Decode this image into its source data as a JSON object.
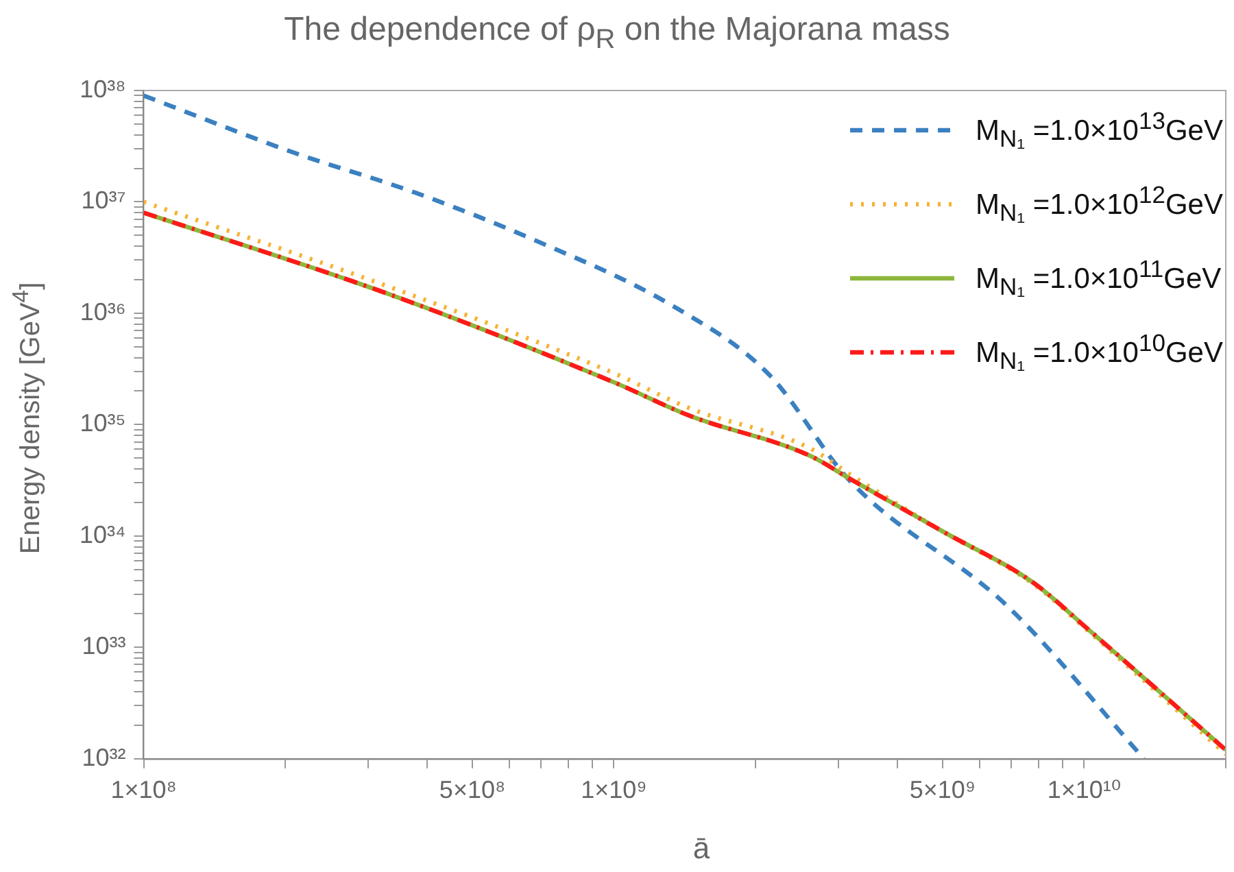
{
  "chart_data": {
    "type": "line",
    "title": "The dependence of ρ$_{R}$ on the Majorana mass",
    "xlabel": "ā",
    "ylabel": "Energy density  [GeV$^{4}$]",
    "log": "xy",
    "grid": false,
    "legend": "top right",
    "marker": "none",
    "xlim": [
      100000000.0,
      20000000000.0
    ],
    "ylim": [
      1e+32,
      1e+38
    ],
    "xticks": [
      {
        "value": 100000000.0,
        "label": "1×10⁸"
      },
      {
        "value": 200000000.0,
        "label": null
      },
      {
        "value": 300000000.0,
        "label": null
      },
      {
        "value": 400000000.0,
        "label": null
      },
      {
        "value": 500000000.0,
        "label": "5×10⁸"
      },
      {
        "value": 600000000.0,
        "label": null
      },
      {
        "value": 700000000.0,
        "label": null
      },
      {
        "value": 800000000.0,
        "label": null
      },
      {
        "value": 900000000.0,
        "label": null
      },
      {
        "value": 1000000000.0,
        "label": "1×10⁹"
      },
      {
        "value": 2000000000.0,
        "label": null
      },
      {
        "value": 3000000000.0,
        "label": null
      },
      {
        "value": 4000000000.0,
        "label": null
      },
      {
        "value": 5000000000.0,
        "label": "5×10⁹"
      },
      {
        "value": 6000000000.0,
        "label": null
      },
      {
        "value": 7000000000.0,
        "label": null
      },
      {
        "value": 8000000000.0,
        "label": null
      },
      {
        "value": 9000000000.0,
        "label": null
      },
      {
        "value": 10000000000.0,
        "label": "1×10¹⁰"
      },
      {
        "value": 20000000000.0,
        "label": null
      }
    ],
    "yticks": [
      {
        "value": 1e+32,
        "label": "10³²"
      },
      {
        "value": 2e+32,
        "label": null
      },
      {
        "value": 3e+32,
        "label": null
      },
      {
        "value": 4e+32,
        "label": null
      },
      {
        "value": 5e+32,
        "label": null
      },
      {
        "value": 6e+32,
        "label": null
      },
      {
        "value": 7e+32,
        "label": null
      },
      {
        "value": 8e+32,
        "label": null
      },
      {
        "value": 9e+32,
        "label": null
      },
      {
        "value": 1e+33,
        "label": "10³³"
      },
      {
        "value": 2e+33,
        "label": null
      },
      {
        "value": 3e+33,
        "label": null
      },
      {
        "value": 4e+33,
        "label": null
      },
      {
        "value": 5e+33,
        "label": null
      },
      {
        "value": 6e+33,
        "label": null
      },
      {
        "value": 7e+33,
        "label": null
      },
      {
        "value": 8e+33,
        "label": null
      },
      {
        "value": 9e+33,
        "label": null
      },
      {
        "value": 1e+34,
        "label": "10³⁴"
      },
      {
        "value": 2e+34,
        "label": null
      },
      {
        "value": 3e+34,
        "label": null
      },
      {
        "value": 4e+34,
        "label": null
      },
      {
        "value": 5e+34,
        "label": null
      },
      {
        "value": 6e+34,
        "label": null
      },
      {
        "value": 7e+34,
        "label": null
      },
      {
        "value": 8e+34,
        "label": null
      },
      {
        "value": 9e+34,
        "label": null
      },
      {
        "value": 1e+35,
        "label": "10³⁵"
      },
      {
        "value": 2e+35,
        "label": null
      },
      {
        "value": 3e+35,
        "label": null
      },
      {
        "value": 4e+35,
        "label": null
      },
      {
        "value": 5e+35,
        "label": null
      },
      {
        "value": 6e+35,
        "label": null
      },
      {
        "value": 7e+35,
        "label": null
      },
      {
        "value": 8e+35,
        "label": null
      },
      {
        "value": 9e+35,
        "label": null
      },
      {
        "value": 1e+36,
        "label": "10³⁶"
      },
      {
        "value": 2e+36,
        "label": null
      },
      {
        "value": 3e+36,
        "label": null
      },
      {
        "value": 4e+36,
        "label": null
      },
      {
        "value": 5e+36,
        "label": null
      },
      {
        "value": 6e+36,
        "label": null
      },
      {
        "value": 7e+36,
        "label": null
      },
      {
        "value": 8e+36,
        "label": null
      },
      {
        "value": 9e+36,
        "label": null
      },
      {
        "value": 1e+37,
        "label": "10³⁷"
      },
      {
        "value": 2e+37,
        "label": null
      },
      {
        "value": 3e+37,
        "label": null
      },
      {
        "value": 4e+37,
        "label": null
      },
      {
        "value": 5e+37,
        "label": null
      },
      {
        "value": 6e+37,
        "label": null
      },
      {
        "value": 7e+37,
        "label": null
      },
      {
        "value": 8e+37,
        "label": null
      },
      {
        "value": 9e+37,
        "label": null
      },
      {
        "value": 1e+38,
        "label": "10³⁸"
      }
    ],
    "series": [
      {
        "name": "M$_{N₁}$ =1.0×10$^{13}$GeV",
        "color": "#3b80c0",
        "line_style": "dashed",
        "x": [
          100000000.0,
          207000000.0,
          380000000.0,
          665000000.0,
          1340000000.0,
          2140000000.0,
          3160000000.0,
          6900000000.0,
          13400000000.0
        ],
        "values": [
          9e+37,
          2.8e+37,
          1.2e+37,
          4.7e+36,
          1.15e+36,
          2.8e+35,
          3.2e+34,
          2.3e+33,
          1e+32
        ]
      },
      {
        "name": "M$_{N₁}$ =1.0×10$^{12}$GeV",
        "color": "#f5b335",
        "line_style": "dotted",
        "x": [
          100000000.0,
          330000000.0,
          1000000000.0,
          1450000000.0,
          2600000000.0,
          3200000000.0,
          5000000000.0,
          7800000000.0,
          10200000000.0,
          20000000000.0
        ],
        "values": [
          1e+37,
          1.75e+36,
          2.9e+35,
          1.4e+35,
          6.2e+34,
          3.5e+34,
          1.1e+34,
          3.7e+33,
          1.4e+33,
          1.1e+32
        ]
      },
      {
        "name": "M$_{N₁}$ =1.0×10$^{11}$GeV",
        "color": "#8db63c",
        "line_style": "solid",
        "x": [
          100000000.0,
          330000000.0,
          1000000000.0,
          1450000000.0,
          2600000000.0,
          3200000000.0,
          5000000000.0,
          7800000000.0,
          10200000000.0,
          20000000000.0
        ],
        "values": [
          8e+36,
          1.5e+36,
          2.4e+35,
          1.2e+35,
          5.3e+34,
          3.2e+34,
          1.1e+34,
          3.8e+33,
          1.45e+33,
          1.2e+32
        ]
      },
      {
        "name": "M$_{N₁}$ =1.0×10$^{10}$GeV",
        "color": "#ff1a1a",
        "line_style": "dashdot",
        "x": [
          100000000.0,
          330000000.0,
          1000000000.0,
          1450000000.0,
          2600000000.0,
          3200000000.0,
          5000000000.0,
          7800000000.0,
          10200000000.0,
          20000000000.0
        ],
        "values": [
          8e+36,
          1.5e+36,
          2.4e+35,
          1.2e+35,
          5.3e+34,
          3.2e+34,
          1.1e+34,
          3.8e+33,
          1.45e+33,
          1.2e+32
        ]
      }
    ]
  }
}
